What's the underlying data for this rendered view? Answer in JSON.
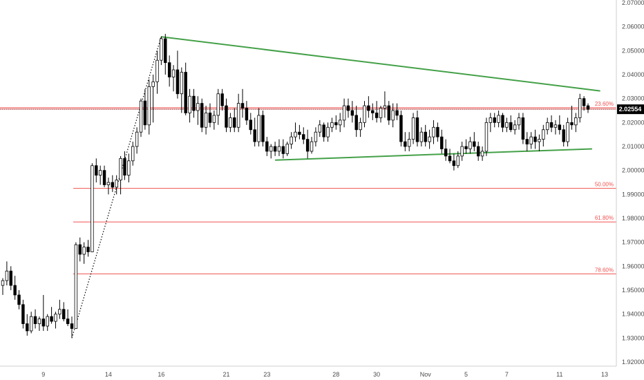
{
  "chart_data": {
    "type": "candlestick",
    "title": "",
    "xlabel": "",
    "ylabel": "",
    "ylim": [
      1.92,
      2.07
    ],
    "y_ticks": [
      "2.07000",
      "2.06000",
      "2.05000",
      "2.04000",
      "2.03000",
      "2.02000",
      "2.01000",
      "2.00000",
      "1.99000",
      "1.98000",
      "1.97000",
      "1.96000",
      "1.95000",
      "1.94000",
      "1.93000",
      "1.92000"
    ],
    "x_ticks": [
      "9",
      "14",
      "16",
      "21",
      "23",
      "28",
      "30",
      "Nov",
      "5",
      "7",
      "11",
      "13"
    ],
    "last_price": "2.02554",
    "grid": false,
    "fib_levels": [
      {
        "label": "23.60%",
        "value": 2.0262
      },
      {
        "label": "50.00%",
        "value": 1.9925
      },
      {
        "label": "61.80%",
        "value": 1.9785
      },
      {
        "label": "78.60%",
        "value": 1.9568
      }
    ],
    "ohlc": [
      [
        1.952,
        1.955,
        1.948,
        1.954
      ],
      [
        1.954,
        1.962,
        1.952,
        1.958
      ],
      [
        1.958,
        1.96,
        1.95,
        1.952
      ],
      [
        1.952,
        1.956,
        1.946,
        1.948
      ],
      [
        1.948,
        1.95,
        1.942,
        1.944
      ],
      [
        1.944,
        1.946,
        1.934,
        1.936
      ],
      [
        1.936,
        1.94,
        1.931,
        1.933
      ],
      [
        1.933,
        1.941,
        1.932,
        1.939
      ],
      [
        1.939,
        1.942,
        1.934,
        1.936
      ],
      [
        1.936,
        1.939,
        1.933,
        1.938
      ],
      [
        1.938,
        1.948,
        1.933,
        1.935
      ],
      [
        1.935,
        1.94,
        1.933,
        1.939
      ],
      [
        1.939,
        1.943,
        1.936,
        1.937
      ],
      [
        1.937,
        1.941,
        1.934,
        1.94
      ],
      [
        1.94,
        1.946,
        1.938,
        1.942
      ],
      [
        1.942,
        1.945,
        1.937,
        1.938
      ],
      [
        1.938,
        1.942,
        1.935,
        1.936
      ],
      [
        1.936,
        1.939,
        1.93,
        1.934
      ],
      [
        1.934,
        1.97,
        1.934,
        1.969
      ],
      [
        1.969,
        1.972,
        1.962,
        1.965
      ],
      [
        1.965,
        1.97,
        1.961,
        1.968
      ],
      [
        1.968,
        1.971,
        1.964,
        1.966
      ],
      [
        1.966,
        2.003,
        1.966,
        2.002
      ],
      [
        2.002,
        2.005,
        1.995,
        1.998
      ],
      [
        1.998,
        2.002,
        1.994,
        2.0
      ],
      [
        2.0,
        2.002,
        1.993,
        1.994
      ],
      [
        1.994,
        1.997,
        1.99,
        1.995
      ],
      [
        1.995,
        1.998,
        1.991,
        1.993
      ],
      [
        1.993,
        1.998,
        1.99,
        1.996
      ],
      [
        1.996,
        2.006,
        1.99,
        2.005
      ],
      [
        2.005,
        2.008,
        1.996,
        1.998
      ],
      [
        1.998,
        2.007,
        1.995,
        2.004
      ],
      [
        2.004,
        2.012,
        2.002,
        2.01
      ],
      [
        2.01,
        2.018,
        2.007,
        2.016
      ],
      [
        2.016,
        2.03,
        2.014,
        2.029
      ],
      [
        2.029,
        2.034,
        2.017,
        2.019
      ],
      [
        2.019,
        2.038,
        2.015,
        2.035
      ],
      [
        2.035,
        2.04,
        2.02,
        2.037
      ],
      [
        2.037,
        2.05,
        2.032,
        2.046
      ],
      [
        2.046,
        2.056,
        2.044,
        2.055
      ],
      [
        2.055,
        2.057,
        2.04,
        2.045
      ],
      [
        2.045,
        2.048,
        2.035,
        2.039
      ],
      [
        2.039,
        2.044,
        2.033,
        2.042
      ],
      [
        2.042,
        2.05,
        2.03,
        2.032
      ],
      [
        2.032,
        2.043,
        2.024,
        2.041
      ],
      [
        2.041,
        2.045,
        2.023,
        2.024
      ],
      [
        2.024,
        2.034,
        2.02,
        2.031
      ],
      [
        2.031,
        2.034,
        2.022,
        2.025
      ],
      [
        2.025,
        2.031,
        2.019,
        2.028
      ],
      [
        2.028,
        2.03,
        2.016,
        2.018
      ],
      [
        2.018,
        2.027,
        2.015,
        2.024
      ],
      [
        2.024,
        2.028,
        2.018,
        2.02
      ],
      [
        2.02,
        2.025,
        2.017,
        2.023
      ],
      [
        2.023,
        2.034,
        2.019,
        2.032
      ],
      [
        2.032,
        2.034,
        2.025,
        2.027
      ],
      [
        2.027,
        2.03,
        2.016,
        2.018
      ],
      [
        2.018,
        2.024,
        2.016,
        2.022
      ],
      [
        2.022,
        2.026,
        2.016,
        2.018
      ],
      [
        2.018,
        2.032,
        2.016,
        2.028
      ],
      [
        2.028,
        2.034,
        2.022,
        2.026
      ],
      [
        2.026,
        2.029,
        2.019,
        2.021
      ],
      [
        2.021,
        2.024,
        2.015,
        2.017
      ],
      [
        2.017,
        2.022,
        2.01,
        2.012
      ],
      [
        2.012,
        2.026,
        2.01,
        2.023
      ],
      [
        2.023,
        2.025,
        2.01,
        2.012
      ],
      [
        2.012,
        2.014,
        2.006,
        2.008
      ],
      [
        2.008,
        2.011,
        2.005,
        2.01
      ],
      [
        2.01,
        2.012,
        2.006,
        2.008
      ],
      [
        2.008,
        2.013,
        2.006,
        2.01
      ],
      [
        2.01,
        2.013,
        2.005,
        2.007
      ],
      [
        2.007,
        2.012,
        2.006,
        2.011
      ],
      [
        2.011,
        2.016,
        2.009,
        2.014
      ],
      [
        2.014,
        2.02,
        2.012,
        2.016
      ],
      [
        2.016,
        2.019,
        2.013,
        2.015
      ],
      [
        2.015,
        2.018,
        2.011,
        2.013
      ],
      [
        2.013,
        2.017,
        2.005,
        2.008
      ],
      [
        2.008,
        2.014,
        2.007,
        2.012
      ],
      [
        2.012,
        2.018,
        2.01,
        2.016
      ],
      [
        2.016,
        2.021,
        2.014,
        2.019
      ],
      [
        2.019,
        2.02,
        2.012,
        2.014
      ],
      [
        2.014,
        2.02,
        2.012,
        2.018
      ],
      [
        2.018,
        2.022,
        2.016,
        2.02
      ],
      [
        2.02,
        2.023,
        2.017,
        2.019
      ],
      [
        2.019,
        2.024,
        2.016,
        2.021
      ],
      [
        2.021,
        2.03,
        2.018,
        2.027
      ],
      [
        2.027,
        2.03,
        2.022,
        2.025
      ],
      [
        2.025,
        2.029,
        2.02,
        2.023
      ],
      [
        2.023,
        2.027,
        2.014,
        2.017
      ],
      [
        2.017,
        2.022,
        2.014,
        2.02
      ],
      [
        2.02,
        2.029,
        2.018,
        2.027
      ],
      [
        2.027,
        2.031,
        2.022,
        2.025
      ],
      [
        2.025,
        2.028,
        2.021,
        2.024
      ],
      [
        2.024,
        2.029,
        2.02,
        2.022
      ],
      [
        2.022,
        2.027,
        2.02,
        2.026
      ],
      [
        2.026,
        2.033,
        2.022,
        2.027
      ],
      [
        2.027,
        2.029,
        2.019,
        2.021
      ],
      [
        2.021,
        2.028,
        2.018,
        2.025
      ],
      [
        2.025,
        2.028,
        2.021,
        2.023
      ],
      [
        2.023,
        2.025,
        2.01,
        2.012
      ],
      [
        2.012,
        2.016,
        2.008,
        2.01
      ],
      [
        2.01,
        2.016,
        2.008,
        2.013
      ],
      [
        2.013,
        2.024,
        2.011,
        2.022
      ],
      [
        2.022,
        2.025,
        2.01,
        2.012
      ],
      [
        2.012,
        2.018,
        2.01,
        2.016
      ],
      [
        2.016,
        2.019,
        2.01,
        2.012
      ],
      [
        2.012,
        2.017,
        2.009,
        2.014
      ],
      [
        2.014,
        2.021,
        2.011,
        2.018
      ],
      [
        2.018,
        2.02,
        2.012,
        2.014
      ],
      [
        2.014,
        2.017,
        2.007,
        2.009
      ],
      [
        2.009,
        2.013,
        2.004,
        2.006
      ],
      [
        2.006,
        2.009,
        2.003,
        2.004
      ],
      [
        2.004,
        2.007,
        2.0,
        2.002
      ],
      [
        2.002,
        2.008,
        2.001,
        2.006
      ],
      [
        2.006,
        2.012,
        2.004,
        2.01
      ],
      [
        2.01,
        2.013,
        2.007,
        2.009
      ],
      [
        2.009,
        2.014,
        2.007,
        2.012
      ],
      [
        2.012,
        2.016,
        2.008,
        2.01
      ],
      [
        2.01,
        2.012,
        2.004,
        2.006
      ],
      [
        2.006,
        2.01,
        2.004,
        2.008
      ],
      [
        2.008,
        2.022,
        2.006,
        2.02
      ],
      [
        2.02,
        2.024,
        2.016,
        2.022
      ],
      [
        2.022,
        2.024,
        2.018,
        2.02
      ],
      [
        2.02,
        2.025,
        2.018,
        2.023
      ],
      [
        2.023,
        2.024,
        2.016,
        2.018
      ],
      [
        2.018,
        2.022,
        2.016,
        2.02
      ],
      [
        2.02,
        2.023,
        2.016,
        2.017
      ],
      [
        2.017,
        2.021,
        2.015,
        2.019
      ],
      [
        2.019,
        2.024,
        2.017,
        2.022
      ],
      [
        2.022,
        2.024,
        2.011,
        2.013
      ],
      [
        2.013,
        2.016,
        2.008,
        2.011
      ],
      [
        2.011,
        2.016,
        2.009,
        2.014
      ],
      [
        2.014,
        2.017,
        2.009,
        2.012
      ],
      [
        2.012,
        2.015,
        2.008,
        2.013
      ],
      [
        2.013,
        2.019,
        2.01,
        2.017
      ],
      [
        2.017,
        2.022,
        2.015,
        2.02
      ],
      [
        2.02,
        2.023,
        2.016,
        2.018
      ],
      [
        2.018,
        2.021,
        2.015,
        2.019
      ],
      [
        2.019,
        2.023,
        2.015,
        2.017
      ],
      [
        2.017,
        2.019,
        2.01,
        2.012
      ],
      [
        2.012,
        2.022,
        2.01,
        2.02
      ],
      [
        2.02,
        2.027,
        2.017,
        2.019
      ],
      [
        2.019,
        2.024,
        2.016,
        2.022
      ],
      [
        2.022,
        2.032,
        2.02,
        2.03
      ],
      [
        2.03,
        2.031,
        2.025,
        2.027
      ],
      [
        2.027,
        2.028,
        2.024,
        2.0255
      ]
    ]
  }
}
